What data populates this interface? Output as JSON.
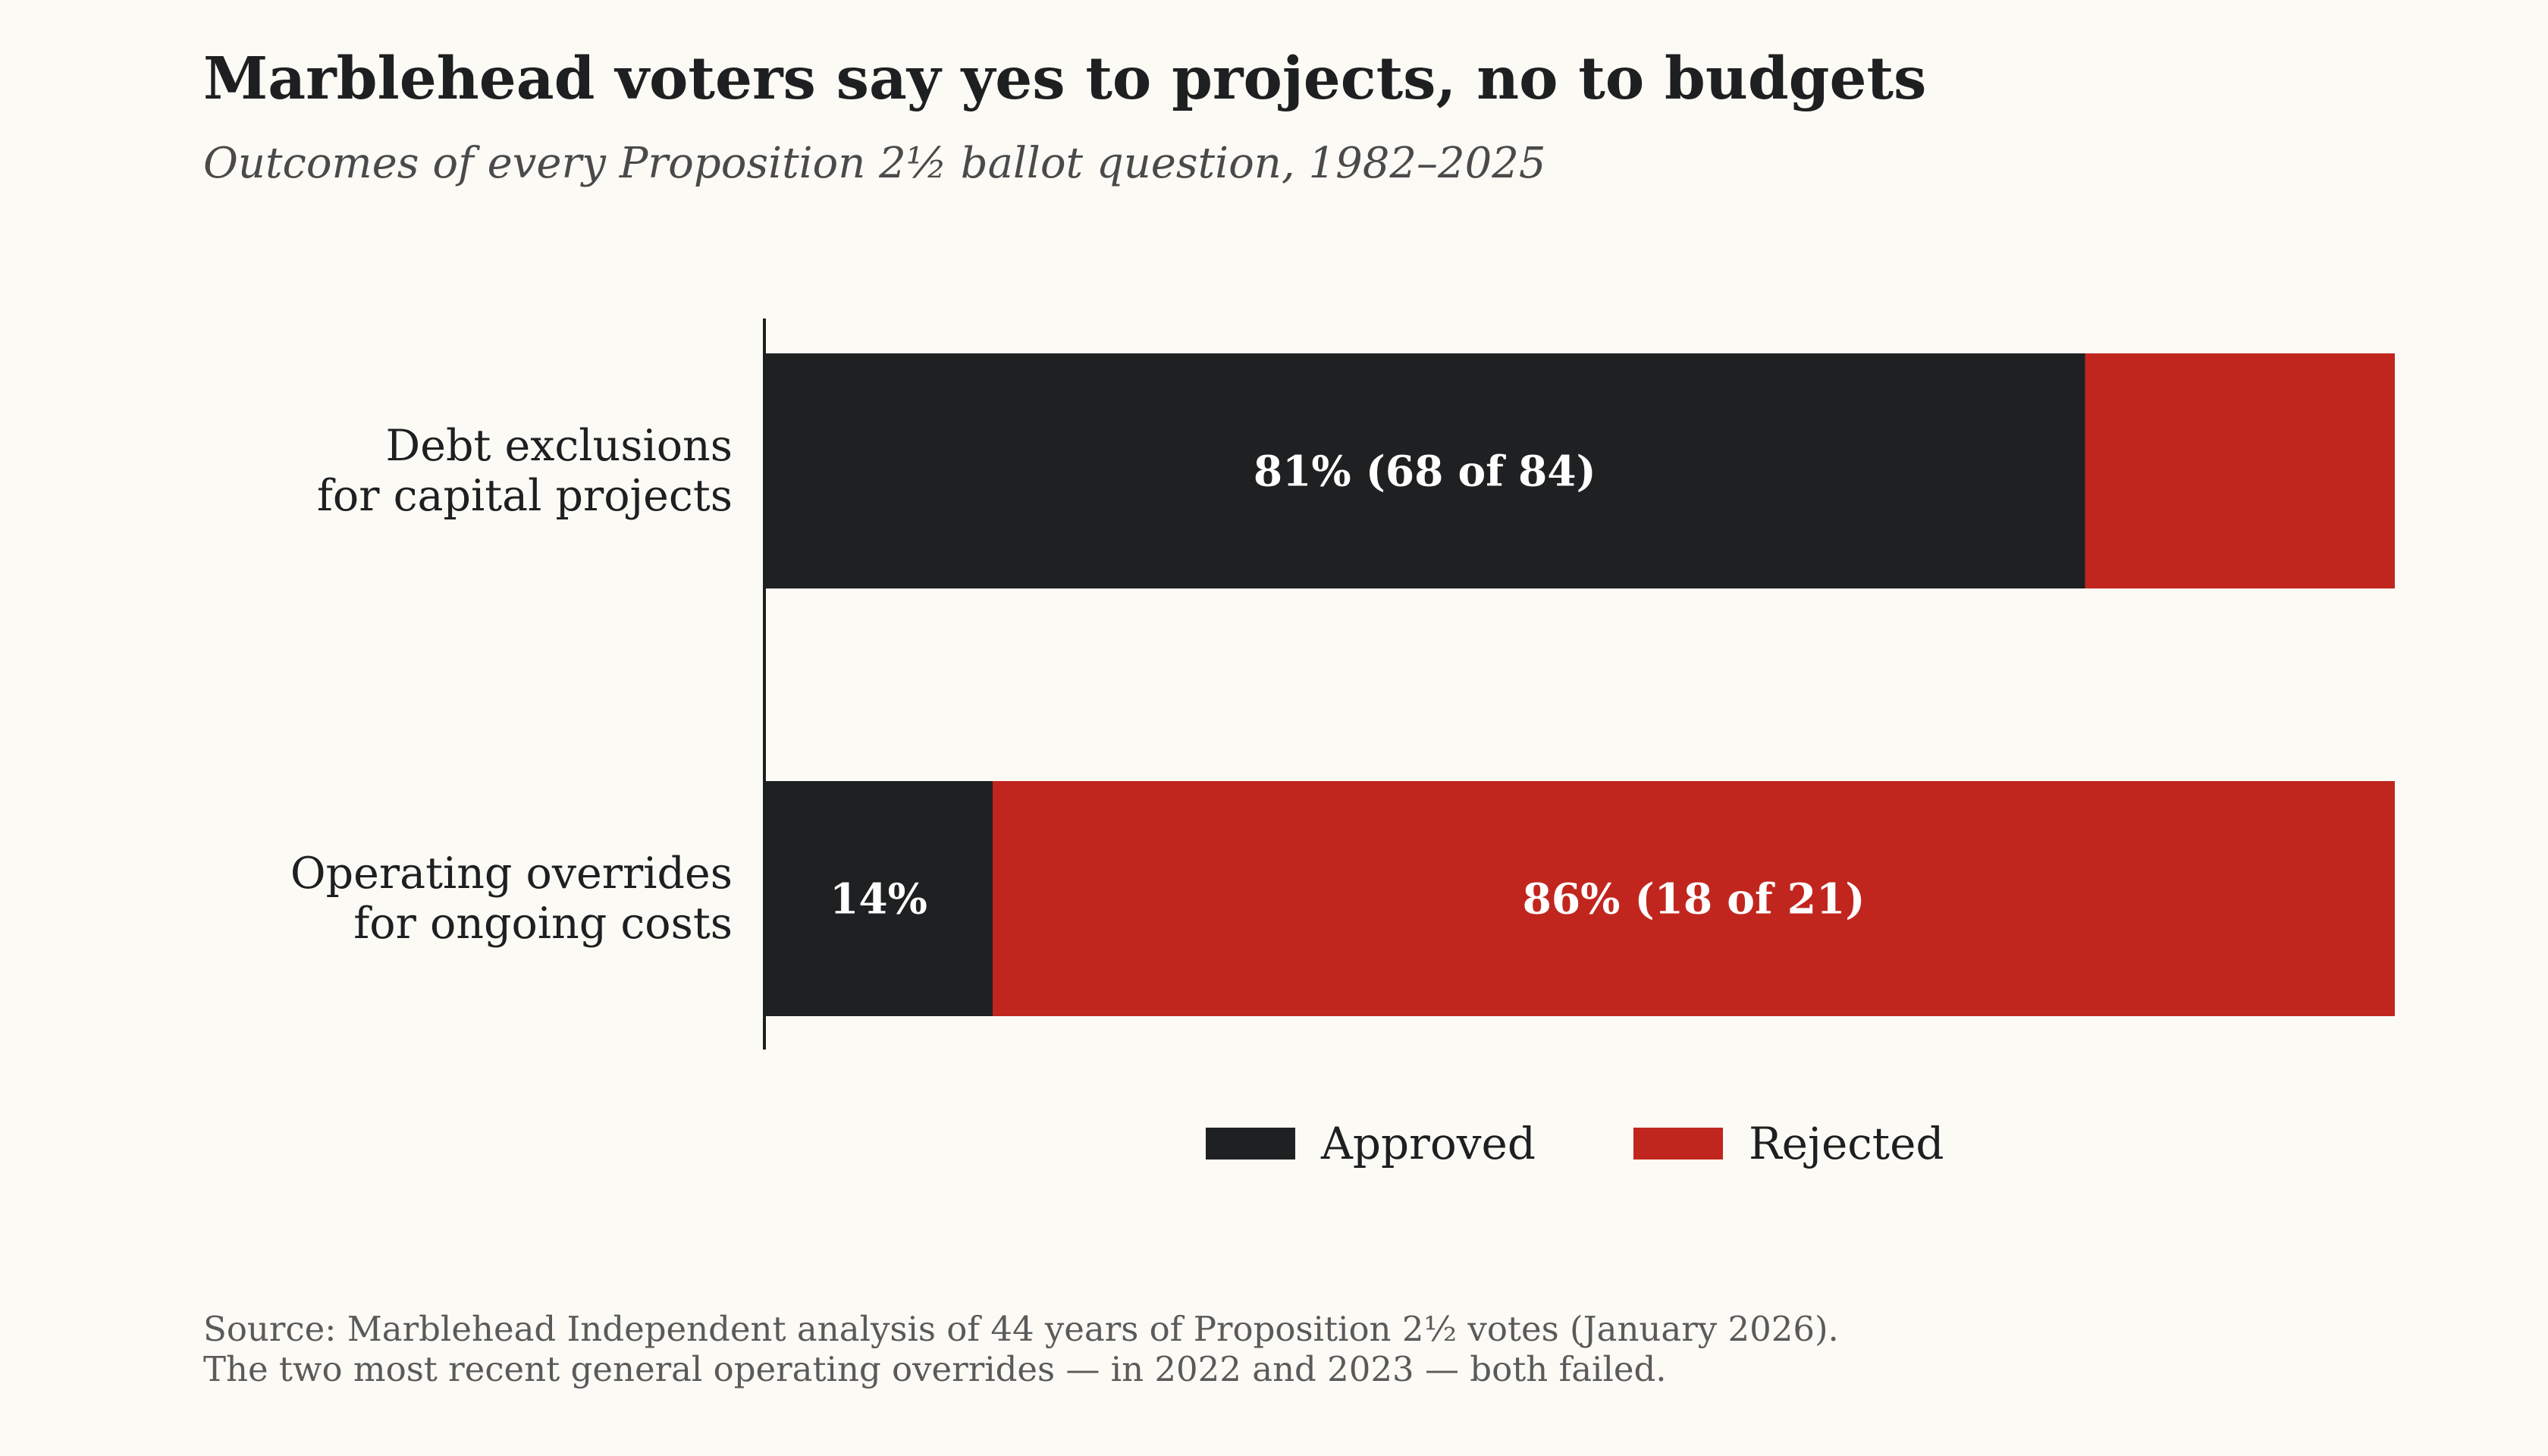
{
  "title": "Marblehead voters say yes to projects, no to budgets",
  "subtitle": "Outcomes of every Proposition 2½ ballot question, 1982–2025",
  "source_lines": [
    "Source: Marblehead Independent analysis of 44 years of Proposition 2½ votes (January 2026).",
    "The two most recent general operating overrides — in 2022 and 2023 — both failed."
  ],
  "chart_data": {
    "type": "bar",
    "orientation": "horizontal",
    "stacked": true,
    "normalized_percent": true,
    "xlim": [
      0,
      100
    ],
    "grid": false,
    "legend_position": "bottom-center",
    "categories": [
      [
        "Debt exclusions",
        "for capital projects"
      ],
      [
        "Operating overrides",
        "for ongoing costs"
      ]
    ],
    "series": [
      {
        "name": "Approved",
        "color": "#1f2022",
        "values": [
          81,
          14
        ],
        "labels": [
          "81% (68 of 84)",
          "14%"
        ]
      },
      {
        "name": "Rejected",
        "color": "#c1261e",
        "values": [
          19,
          86
        ],
        "labels": [
          "",
          "86% (18 of 21)"
        ]
      }
    ],
    "label_color": "#ffffff",
    "axis_color": "#1e1f20"
  }
}
